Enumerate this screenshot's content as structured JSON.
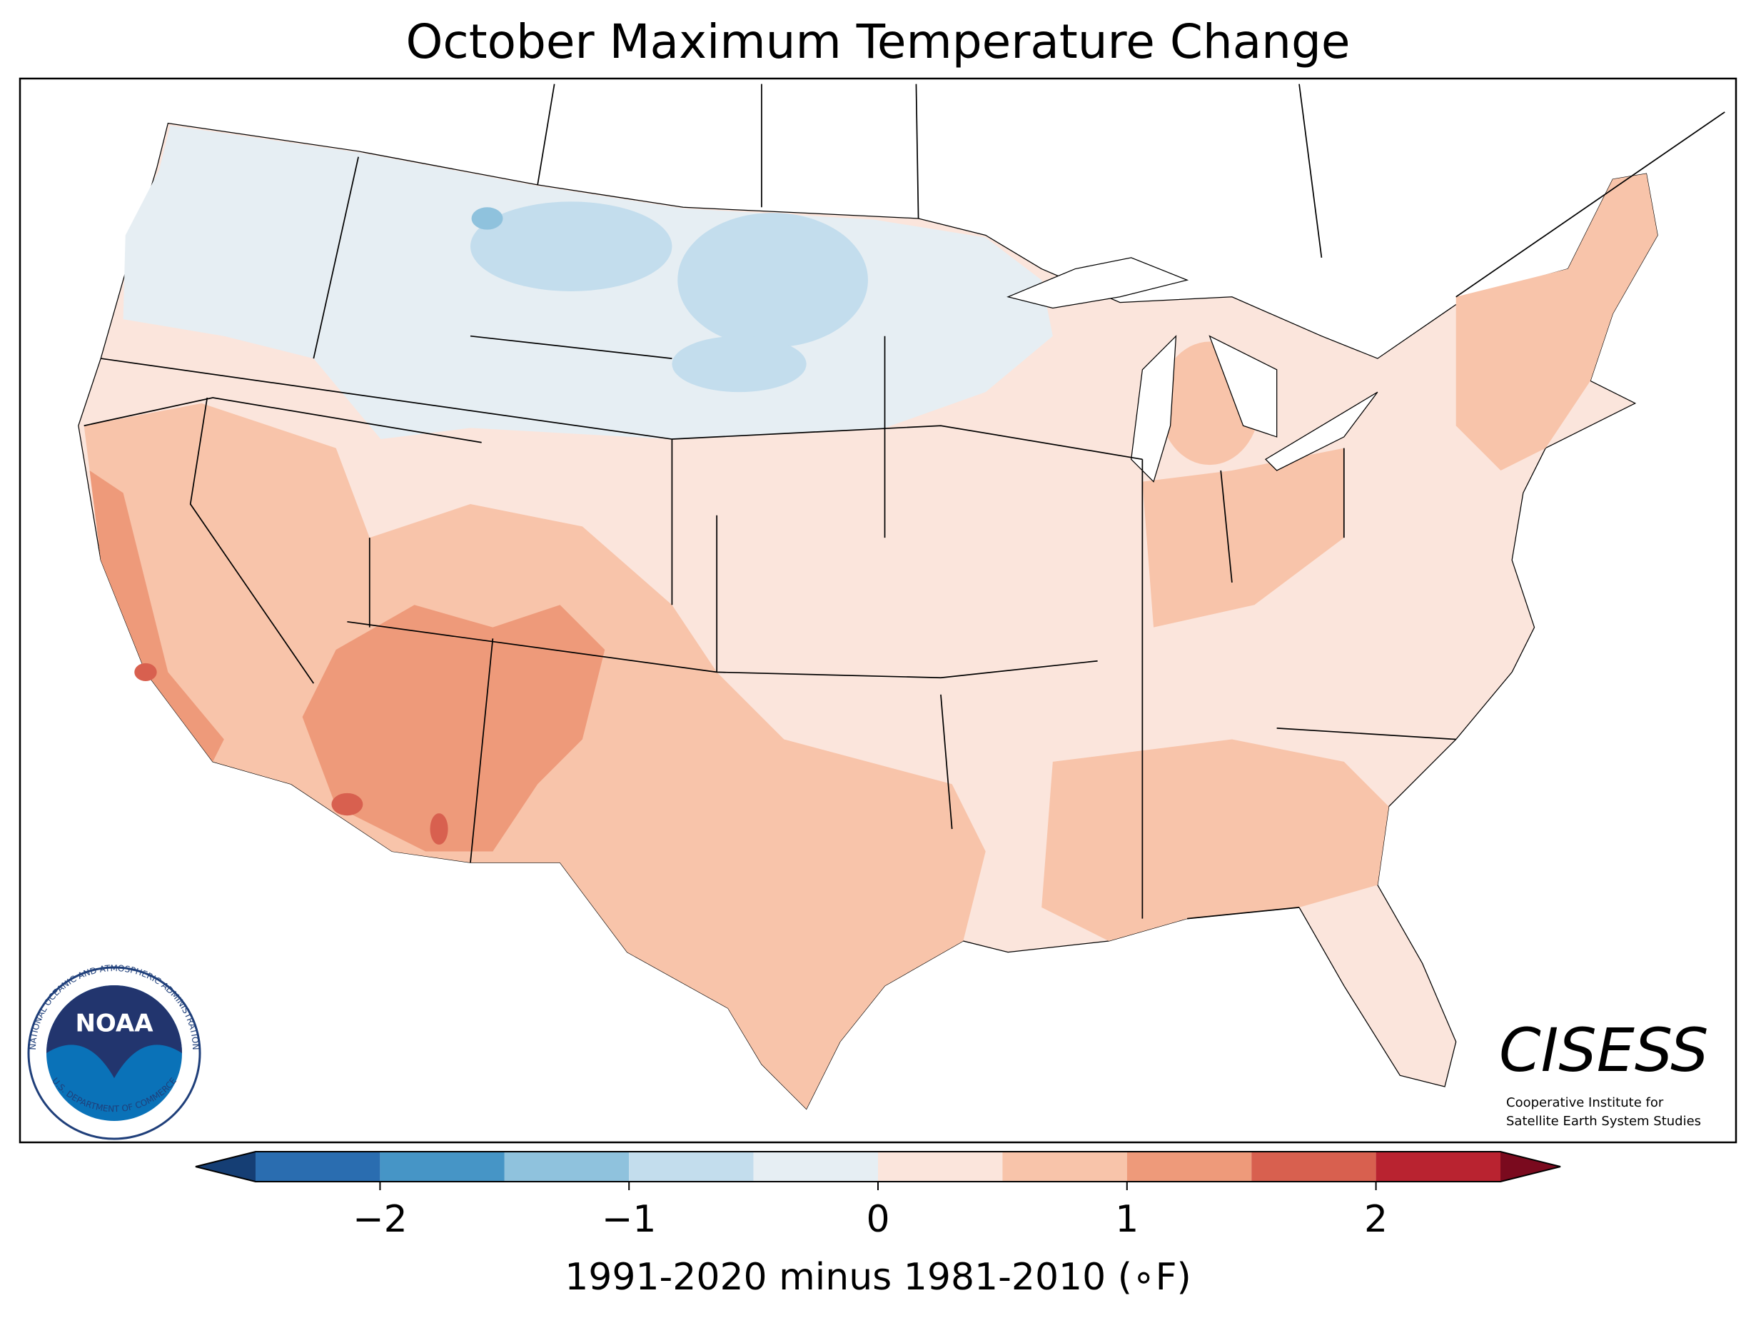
{
  "title": "October Maximum Temperature Change",
  "colorbar": {
    "bins": [
      -2.5,
      -2,
      -1.5,
      -1,
      -0.5,
      0,
      0.5,
      1,
      1.5,
      2,
      2.5
    ],
    "colors": [
      "#2a6db0",
      "#4695c6",
      "#8fc2dd",
      "#c3dded",
      "#e6eef3",
      "#fbe5dc",
      "#f8c4aa",
      "#ee9a7a",
      "#d8604f",
      "#b92330"
    ],
    "extend_colors": [
      "#153e74",
      "#7a0a1e"
    ],
    "ticks": [
      {
        "value": -2,
        "label": "−2"
      },
      {
        "value": -1,
        "label": "−1"
      },
      0,
      1,
      2
    ],
    "label": "1991-2020 minus 1981-2010 (∘F)"
  },
  "logos": {
    "noaa": {
      "name": "NOAA",
      "ring_top": "NATIONAL OCEANIC AND ATMOSPHERIC ADMINISTRATION",
      "ring_bottom": "U.S. DEPARTMENT OF COMMERCE"
    },
    "cisess": {
      "name": "CISESS",
      "line1": "Cooperative Institute for",
      "line2": "Satellite Earth System Studies"
    }
  }
}
